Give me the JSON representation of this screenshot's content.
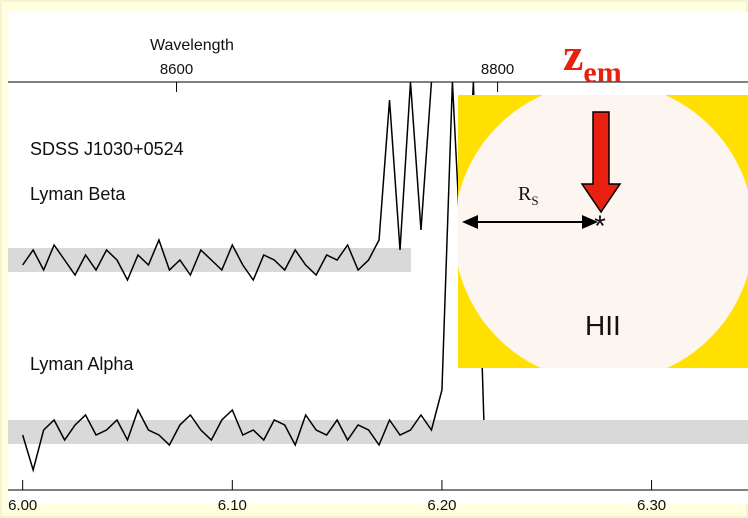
{
  "chart_data": {
    "type": "line",
    "object": "SDSS J1030+0524",
    "x2_label": "Wavelength",
    "x": [
      6.0,
      6.005,
      6.01,
      6.015,
      6.02,
      6.025,
      6.03,
      6.035,
      6.04,
      6.045,
      6.05,
      6.055,
      6.06,
      6.065,
      6.07,
      6.075,
      6.08,
      6.085,
      6.09,
      6.095,
      6.1,
      6.105,
      6.11,
      6.115,
      6.12,
      6.125,
      6.13,
      6.135,
      6.14,
      6.145,
      6.15,
      6.155,
      6.16,
      6.165,
      6.17,
      6.175,
      6.18,
      6.185,
      6.19,
      6.195,
      6.2,
      6.205,
      6.21,
      6.215,
      6.22
    ],
    "series": [
      {
        "name": "Lyman Beta",
        "color": "#000000",
        "values": [
          2.25,
          2.4,
          2.2,
          2.45,
          2.3,
          2.15,
          2.35,
          2.2,
          2.4,
          2.3,
          2.1,
          2.35,
          2.25,
          2.5,
          2.2,
          2.3,
          2.15,
          2.4,
          2.3,
          2.2,
          2.45,
          2.25,
          2.1,
          2.35,
          2.3,
          2.2,
          2.4,
          2.25,
          2.15,
          2.35,
          2.3,
          2.45,
          2.2,
          2.3,
          2.5,
          3.9,
          2.4,
          4.08,
          2.6,
          4.08,
          null,
          null,
          null,
          null,
          null
        ]
      },
      {
        "name": "Lyman Alpha",
        "color": "#000000",
        "values": [
          0.55,
          0.2,
          0.6,
          0.7,
          0.5,
          0.65,
          0.75,
          0.55,
          0.6,
          0.7,
          0.5,
          0.8,
          0.6,
          0.55,
          0.45,
          0.65,
          0.75,
          0.6,
          0.5,
          0.7,
          0.8,
          0.55,
          0.6,
          0.5,
          0.7,
          0.65,
          0.45,
          0.75,
          0.6,
          0.55,
          0.7,
          0.5,
          0.65,
          0.6,
          0.45,
          0.7,
          0.55,
          0.6,
          0.75,
          0.6,
          1.0,
          4.08,
          2.0,
          4.08,
          0.7
        ]
      }
    ],
    "xlim": [
      5.993,
      6.346
    ],
    "xticks": [
      {
        "value": 6.0,
        "label": "6.00"
      },
      {
        "value": 6.1,
        "label": "6.10"
      },
      {
        "value": 6.2,
        "label": "6.20"
      },
      {
        "value": 6.3,
        "label": "6.30"
      }
    ],
    "x2lim": [
      8495,
      8956
    ],
    "x2ticks": [
      8600,
      8800
    ],
    "ylim": [
      0,
      4.08
    ]
  },
  "inset": {
    "radius_label": "R",
    "radius_sub": "S",
    "region": "HII",
    "z_label": "z",
    "z_sub": "em"
  }
}
